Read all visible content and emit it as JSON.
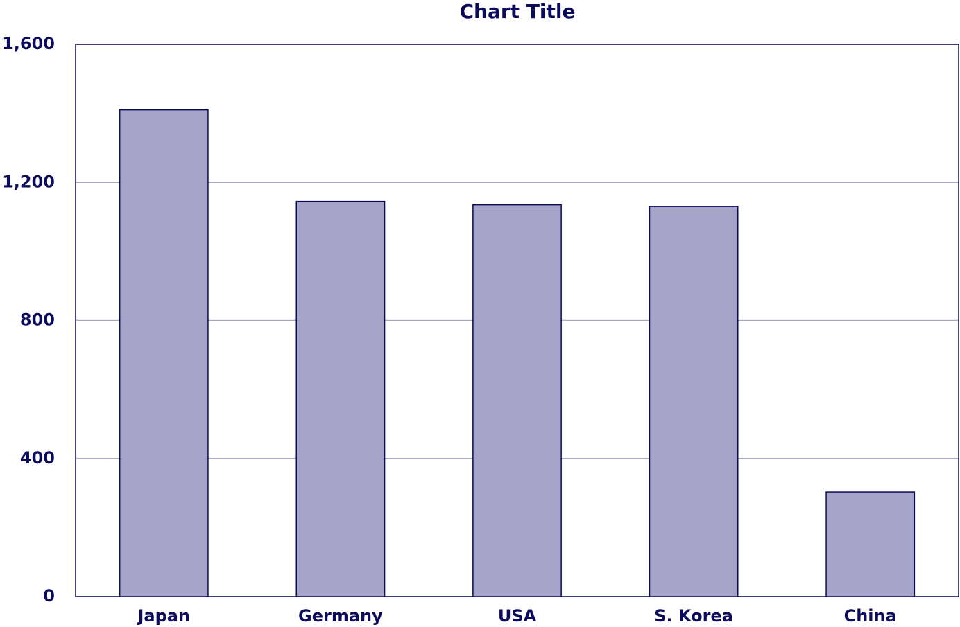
{
  "chart_data": {
    "type": "bar",
    "title": "Chart Title",
    "categories": [
      "Japan",
      "Germany",
      "USA",
      "S. Korea",
      "China"
    ],
    "values": [
      1410,
      1145,
      1135,
      1130,
      303
    ],
    "color": "#a5a3c7",
    "ylim": [
      0,
      1600
    ],
    "yticks": [
      0,
      400,
      800,
      {
        "value": 1200,
        "label": "1,200"
      },
      {
        "value": 1600,
        "label": "1,600"
      }
    ],
    "grid": true
  }
}
